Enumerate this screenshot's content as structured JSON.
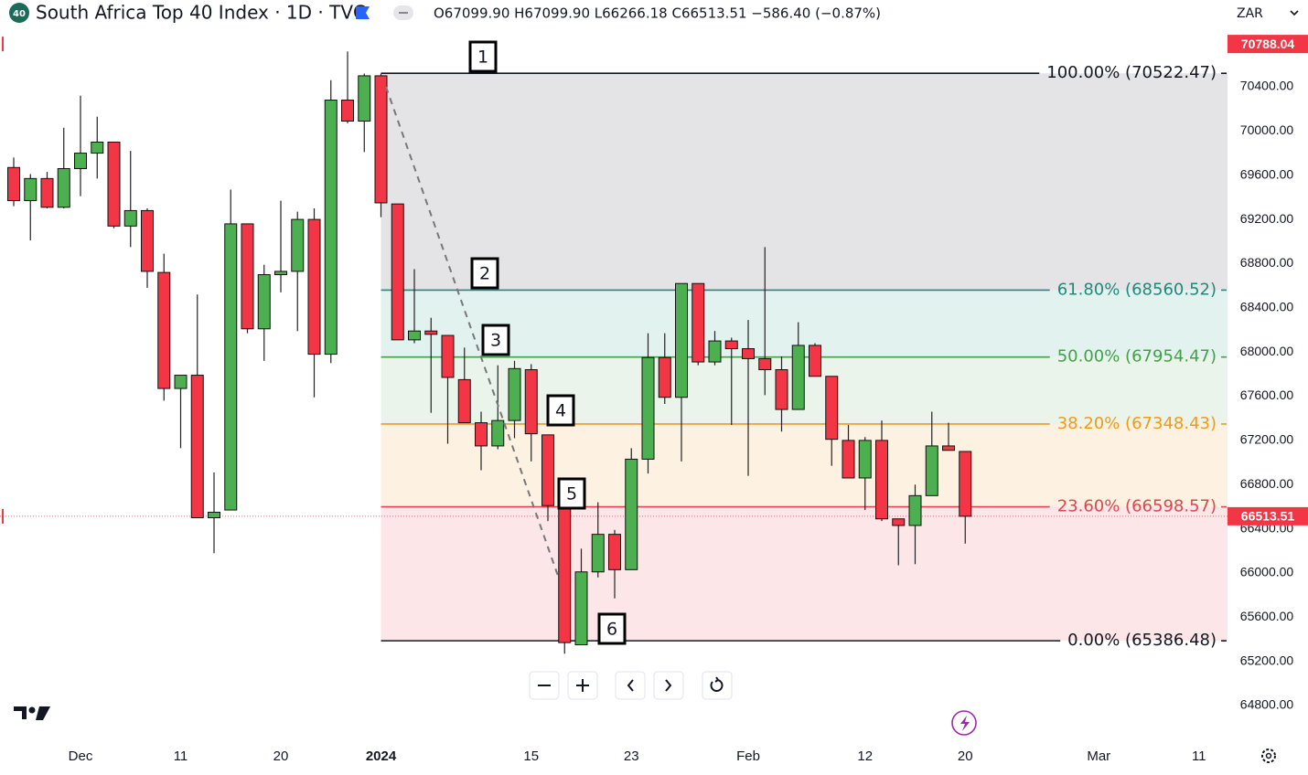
{
  "header": {
    "logo": "40",
    "title": "South Africa Top 40 Index · 1D · TVC",
    "ohlc": "O67099.90 H67099.90 L66266.18 C66513.51 −586.40 (−0.87%)",
    "currency": "ZAR"
  },
  "chart_data": {
    "type": "candlestick",
    "categories": [
      null,
      null,
      null,
      null,
      "Dec",
      null,
      null,
      null,
      null,
      null,
      "11",
      null,
      null,
      null,
      null,
      null,
      "20",
      null,
      null,
      null,
      null,
      null,
      "2024",
      null,
      null,
      null,
      null,
      null,
      null,
      null,
      null,
      "15",
      null,
      null,
      null,
      null,
      null,
      "23",
      null,
      null,
      null,
      null,
      null,
      null,
      "Feb",
      null,
      null,
      null,
      null,
      null,
      null,
      "12",
      null,
      null,
      null,
      null,
      null,
      "20",
      null,
      null,
      null,
      null,
      null,
      null,
      null,
      "Mar",
      null,
      null,
      null,
      null,
      null,
      "11"
    ],
    "open": [
      69670,
      69370,
      69570,
      69310,
      69660,
      69800,
      69900,
      69140,
      69280,
      68720,
      67670,
      67790,
      66500,
      66570,
      69160,
      68210,
      68700,
      68730,
      69200,
      67980,
      70280,
      70090,
      70500,
      69340,
      68110,
      68190,
      68150,
      67750,
      67360,
      67150,
      67380,
      67840,
      67250,
      66610,
      65350,
      66010,
      66350,
      66030,
      67030,
      67950,
      67590,
      68620,
      67910,
      68100,
      68030,
      67940,
      67840,
      67480,
      68060,
      67780,
      67200,
      66860,
      67200,
      66490,
      66430,
      66700,
      67150,
      67099.9,
      null,
      null,
      null,
      null,
      null,
      null,
      null,
      null,
      null,
      null,
      null,
      null,
      null,
      null
    ],
    "high": [
      69760,
      69610,
      69630,
      70030,
      70320,
      70130,
      69900,
      69820,
      69300,
      68890,
      67790,
      68520,
      66910,
      69470,
      69160,
      68790,
      69370,
      69270,
      69300,
      70460,
      70720,
      70520,
      70520,
      69340,
      68750,
      68310,
      68150,
      68040,
      67460,
      67880,
      67920,
      67890,
      67250,
      66610,
      66220,
      66640,
      66390,
      67130,
      68170,
      68170,
      68620,
      68620,
      68190,
      68130,
      68290,
      68950,
      67960,
      68270,
      68080,
      67780,
      67340,
      67230,
      67380,
      66490,
      66800,
      67460,
      67360,
      67099.9,
      null,
      null,
      null,
      null,
      null,
      null,
      null,
      null,
      null,
      null,
      null,
      null,
      null,
      null
    ],
    "low": [
      69320,
      69010,
      69300,
      69300,
      69410,
      69570,
      69120,
      68950,
      68580,
      67560,
      67130,
      66500,
      66180,
      66570,
      68170,
      67920,
      68540,
      68190,
      67590,
      67900,
      70070,
      69810,
      69220,
      68110,
      68080,
      67450,
      67170,
      67360,
      66930,
      67120,
      67220,
      67010,
      66470,
      65270,
      65350,
      65960,
      65770,
      66030,
      66900,
      67530,
      67010,
      67880,
      67880,
      67340,
      66880,
      67610,
      67280,
      67480,
      67780,
      66970,
      66860,
      66570,
      66470,
      66070,
      66080,
      66700,
      67110,
      66266.18,
      null,
      null,
      null,
      null,
      null,
      null,
      null,
      null,
      null,
      null,
      null,
      null,
      null,
      null
    ],
    "close": [
      69370,
      69570,
      69310,
      69660,
      69800,
      69900,
      69140,
      69280,
      68730,
      67670,
      67790,
      66500,
      66550,
      69160,
      68210,
      68700,
      68730,
      69200,
      67980,
      70280,
      70090,
      70500,
      69350,
      68110,
      68190,
      68160,
      67770,
      67360,
      67150,
      67380,
      67850,
      67260,
      66610,
      65370,
      66010,
      66350,
      66030,
      67030,
      67950,
      67590,
      68620,
      67910,
      68100,
      68030,
      67940,
      67840,
      67480,
      68060,
      67780,
      67210,
      66860,
      67200,
      66490,
      66430,
      66700,
      67150,
      67110,
      66513.51,
      null,
      null,
      null,
      null,
      null,
      null,
      null,
      null,
      null,
      null,
      null,
      null,
      null,
      null
    ],
    "up_color": "#4caf50",
    "down_color": "#f23645",
    "ylim": [
      64486,
      71186
    ],
    "yticks": [
      {
        "value": 64800,
        "label": "64800.00"
      },
      {
        "value": 65200,
        "label": "65200.00"
      },
      {
        "value": 65600,
        "label": "65600.00"
      },
      {
        "value": 66000,
        "label": "66000.00"
      },
      {
        "value": 66400,
        "label": "66400.00"
      },
      {
        "value": 66800,
        "label": "66800.00"
      },
      {
        "value": 67200,
        "label": "67200.00"
      },
      {
        "value": 67600,
        "label": "67600.00"
      },
      {
        "value": 68000,
        "label": "68000.00"
      },
      {
        "value": 68400,
        "label": "68400.00"
      },
      {
        "value": 68800,
        "label": "68800.00"
      },
      {
        "value": 69200,
        "label": "69200.00"
      },
      {
        "value": 69600,
        "label": "69600.00"
      },
      {
        "value": 70000,
        "label": "70000.00"
      },
      {
        "value": 70400,
        "label": "70400.00"
      }
    ],
    "grid": false,
    "fib_levels": [
      {
        "value": 70522.47,
        "label": "100.00% (70522.47)",
        "color": "#131722",
        "fill": "#e4e4e6"
      },
      {
        "value": 68560.52,
        "label": "61.80% (68560.52)",
        "color": "#1f8a7a",
        "fill": "#e2f2ef"
      },
      {
        "value": 67954.47,
        "label": "50.00% (67954.47)",
        "color": "#43a047",
        "fill": "#eaf4ea"
      },
      {
        "value": 67348.43,
        "label": "38.20% (67348.43)",
        "color": "#f09a1a",
        "fill": "#fdf1e2"
      },
      {
        "value": 66598.57,
        "label": "23.60% (66598.57)",
        "color": "#e0454f",
        "fill": "#fce6e7"
      },
      {
        "value": 65386.48,
        "label": "0.00% (65386.48)",
        "color": "#131722"
      }
    ],
    "price_tags": [
      {
        "value": 70788.04,
        "color": "#f23645"
      },
      {
        "value": 66513.51,
        "color": "#f23645"
      }
    ],
    "annotations": [
      "1",
      "2",
      "3",
      "4",
      "5",
      "6"
    ]
  }
}
